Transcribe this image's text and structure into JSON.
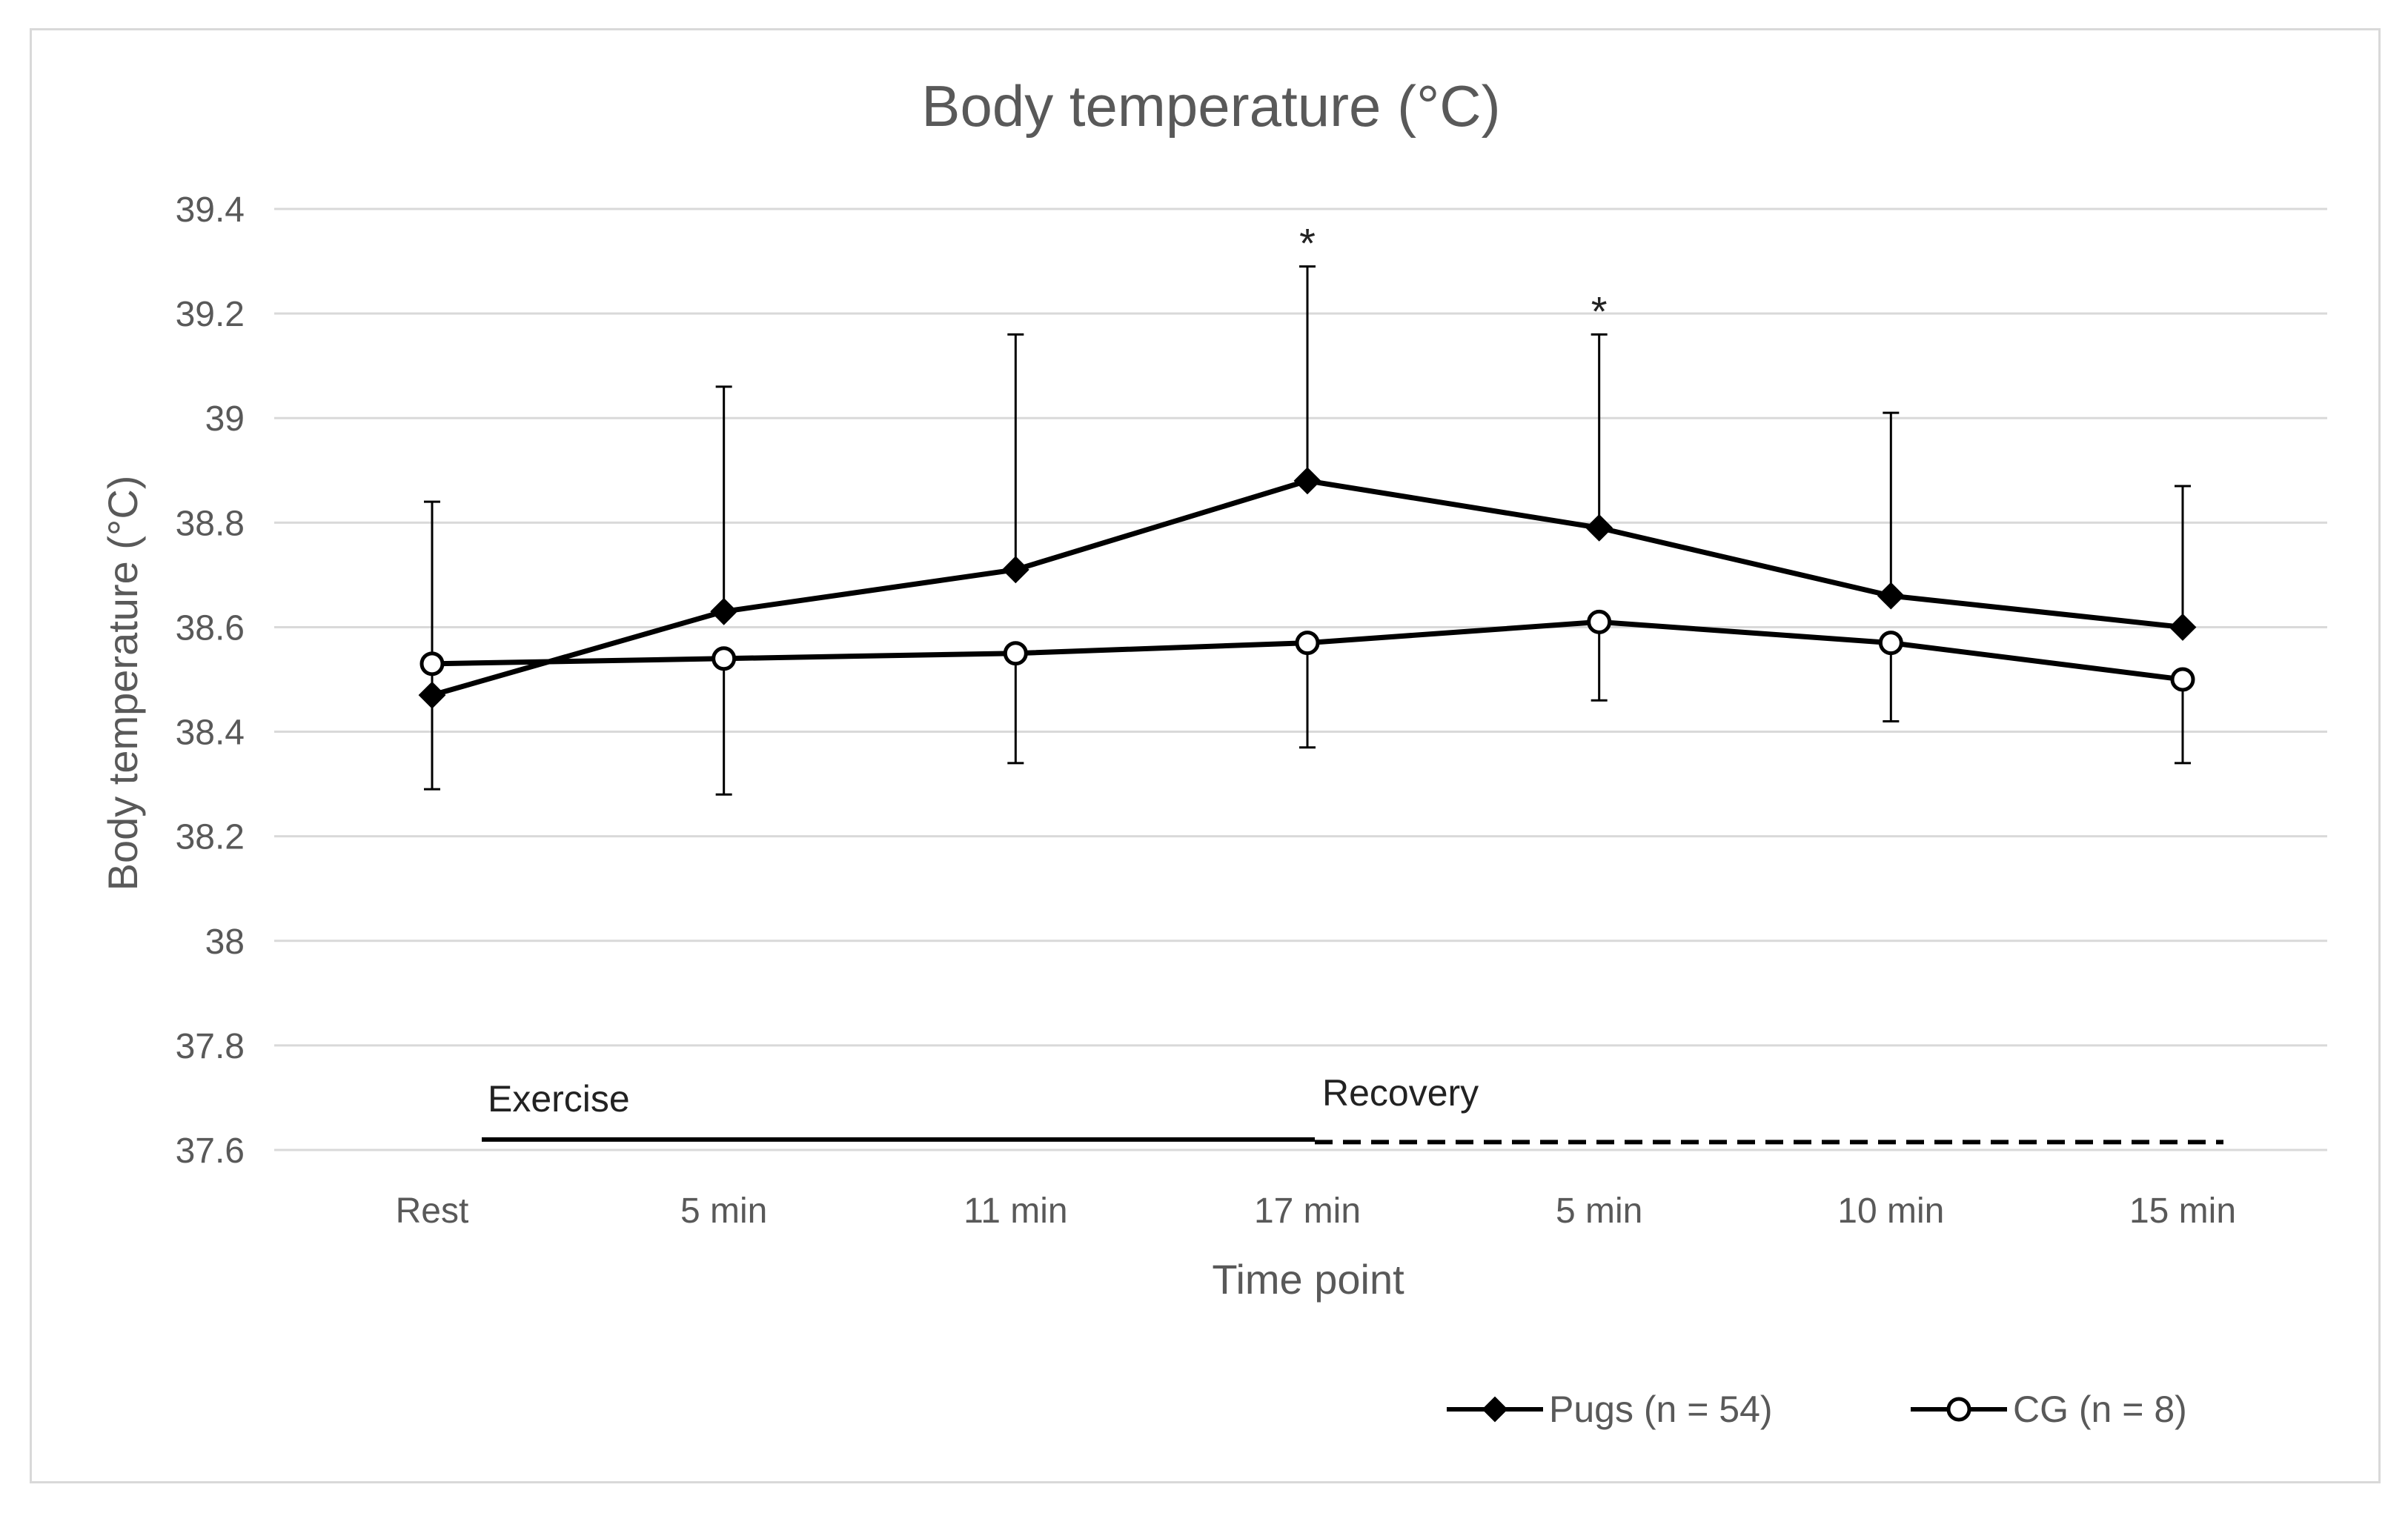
{
  "chart_data": {
    "type": "line",
    "title": "Body temperature (°C)",
    "xlabel": "Time point",
    "ylabel": "Body temperature (°C)",
    "categories": [
      "Rest",
      "5 min",
      "11 min",
      "17 min",
      "5 min",
      "10 min",
      "15 min"
    ],
    "ylim": [
      37.6,
      39.4
    ],
    "yticks": [
      37.6,
      37.8,
      38,
      38.2,
      38.4,
      38.6,
      38.8,
      39,
      39.2,
      39.4
    ],
    "ytick_labels": [
      "37.6",
      "37.8",
      "38",
      "38.2",
      "38.4",
      "38.6",
      "38.8",
      "39",
      "39.2",
      "39.4"
    ],
    "grid": true,
    "legend_position": "bottom-right",
    "series": [
      {
        "name": "Pugs (n = 54)",
        "marker": "filled-diamond",
        "values": [
          38.47,
          38.63,
          38.71,
          38.88,
          38.79,
          38.66,
          38.6
        ],
        "error_upper": [
          38.84,
          39.06,
          39.16,
          39.29,
          39.16,
          39.01,
          38.87
        ],
        "error_lower": [
          38.29,
          null,
          null,
          null,
          null,
          null,
          null
        ]
      },
      {
        "name": "CG (n = 8)",
        "marker": "open-circle",
        "values": [
          38.53,
          38.54,
          38.55,
          38.57,
          38.61,
          38.57,
          38.5
        ],
        "error_upper": [
          null,
          null,
          null,
          null,
          null,
          null,
          null
        ],
        "error_lower": [
          null,
          38.28,
          38.34,
          38.37,
          38.46,
          38.42,
          38.34
        ]
      }
    ],
    "significance_marks": [
      {
        "category_index": 3,
        "label": "*"
      },
      {
        "category_index": 4,
        "label": "*"
      }
    ],
    "phases": [
      {
        "label": "Exercise",
        "from_index": 0,
        "to_index": 3,
        "style": "solid",
        "level": 37.62
      },
      {
        "label": "Recovery",
        "from_index": 3,
        "to_index": 6,
        "style": "dashed",
        "level": 37.615
      }
    ],
    "colors": {
      "line": "#000000",
      "grid": "#d9d9d9",
      "text": "#595959",
      "frame": "#d9d9d9"
    }
  }
}
